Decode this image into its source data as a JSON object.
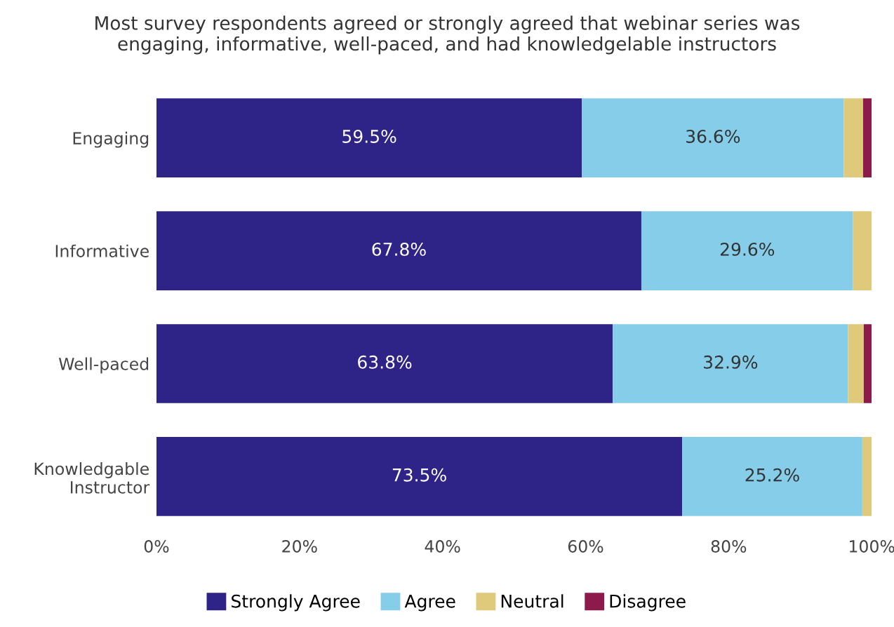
{
  "chart_data": {
    "type": "bar",
    "orientation": "horizontal",
    "stacked": true,
    "title": "Most survey respondents agreed or strongly agreed that webinar series was\nengaging, informative, well-paced, and had knowledgelable instructors",
    "categories": [
      "Engaging",
      "Informative",
      "Well-paced",
      "Knowledgable\nInstructor"
    ],
    "series": [
      {
        "name": "Strongly Agree",
        "color": "#2e2386",
        "values": [
          59.5,
          67.8,
          63.8,
          73.5
        ],
        "value_labels": [
          "59.5%",
          "67.8%",
          "63.8%",
          "73.5%"
        ]
      },
      {
        "name": "Agree",
        "color": "#86cdea",
        "values": [
          36.6,
          29.6,
          32.9,
          25.2
        ],
        "value_labels": [
          "36.6%",
          "29.6%",
          "32.9%",
          "25.2%"
        ]
      },
      {
        "name": "Neutral",
        "color": "#dfc97a",
        "values": [
          2.7,
          2.6,
          2.2,
          1.3
        ]
      },
      {
        "name": "Disagree",
        "color": "#8c1b4b",
        "values": [
          1.2,
          null,
          1.1,
          null
        ]
      }
    ],
    "xlim": [
      0,
      100
    ],
    "xticks": [
      {
        "value": 0,
        "label": "0%"
      },
      {
        "value": 20,
        "label": "20%"
      },
      {
        "value": 40,
        "label": "40%"
      },
      {
        "value": 60,
        "label": "60%"
      },
      {
        "value": 80,
        "label": "80%"
      },
      {
        "value": 100,
        "label": "100%"
      }
    ],
    "grid": false,
    "legend": "bottom"
  }
}
